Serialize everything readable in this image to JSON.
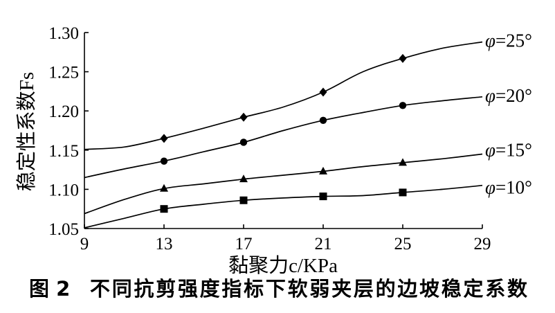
{
  "colors": {
    "ink": "#000000",
    "background": "#ffffff"
  },
  "chart_data": {
    "type": "line",
    "figure_label": "图 2",
    "title": "不同抗剪强度指标下软弱夹层的边坡稳定系数",
    "xlabel": "黏聚力c/KPa",
    "ylabel": "稳定性系数Fs",
    "xlim": [
      9,
      29
    ],
    "ylim": [
      1.05,
      1.3
    ],
    "xticks": [
      9,
      13,
      17,
      21,
      25,
      29
    ],
    "xtick_labels": [
      "9",
      "13",
      "17",
      "21",
      "25",
      "29"
    ],
    "yticks": [
      1.05,
      1.1,
      1.15,
      1.2,
      1.25,
      1.3
    ],
    "ytick_labels": [
      "1.05",
      "1.10",
      "1.15",
      "1.20",
      "1.25",
      "1.30"
    ],
    "grid": false,
    "legend": "right",
    "x": [
      9,
      11,
      13,
      15,
      17,
      19,
      21,
      23,
      25,
      27,
      29
    ],
    "marker_x": [
      13,
      17,
      21,
      25
    ],
    "series": [
      {
        "name": "φ=25°",
        "marker": "diamond",
        "values": [
          1.151,
          1.154,
          1.165,
          1.178,
          1.192,
          1.205,
          1.224,
          1.25,
          1.267,
          1.28,
          1.288
        ]
      },
      {
        "name": "φ=20°",
        "marker": "circle",
        "values": [
          1.115,
          1.126,
          1.136,
          1.148,
          1.16,
          1.175,
          1.188,
          1.198,
          1.207,
          1.213,
          1.218
        ]
      },
      {
        "name": "φ=15°",
        "marker": "triangle",
        "values": [
          1.069,
          1.087,
          1.101,
          1.107,
          1.113,
          1.118,
          1.123,
          1.129,
          1.134,
          1.139,
          1.145
        ]
      },
      {
        "name": "φ=10°",
        "marker": "square",
        "values": [
          1.051,
          1.063,
          1.075,
          1.081,
          1.086,
          1.089,
          1.091,
          1.092,
          1.096,
          1.1,
          1.105
        ]
      }
    ]
  }
}
